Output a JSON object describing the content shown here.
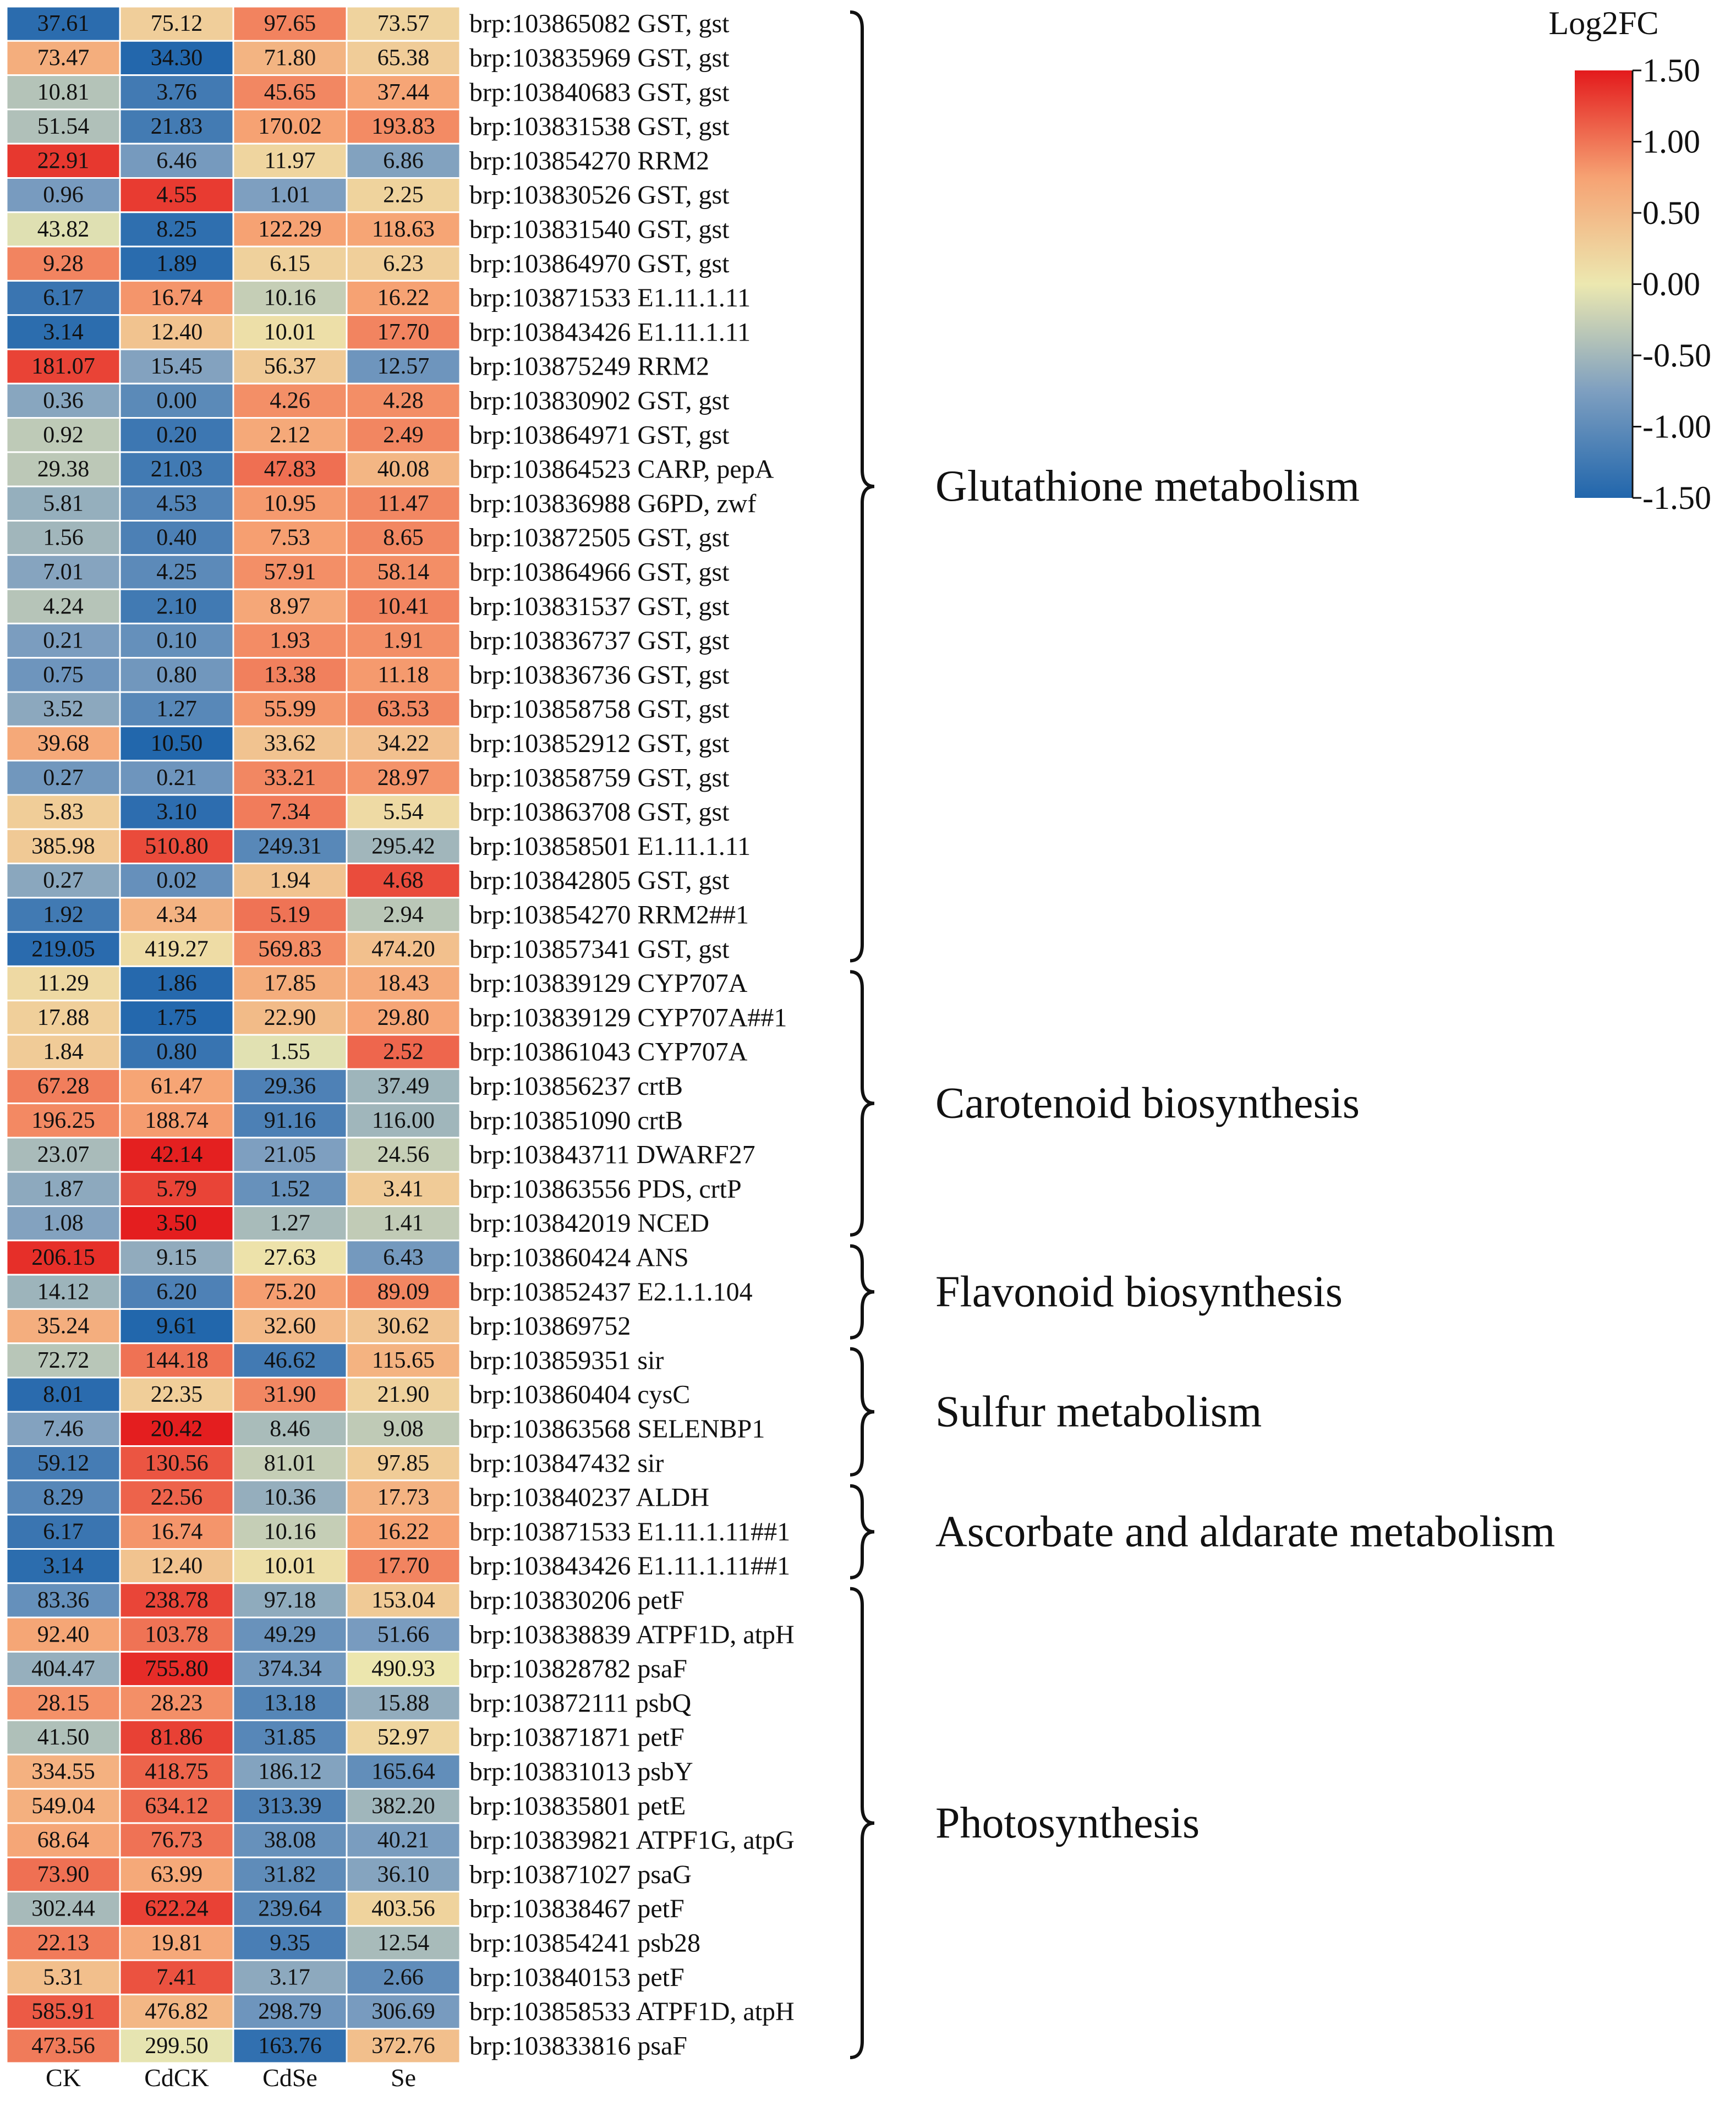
{
  "chart_data": {
    "type": "heatmap",
    "title": "",
    "columns": [
      "CK",
      "CdCK",
      "CdSe",
      "Se"
    ],
    "rows": [
      {
        "label": "brp:103865082 GST, gst",
        "values": [
          37.61,
          75.12,
          97.65,
          73.57
        ]
      },
      {
        "label": "brp:103835969 GST, gst",
        "values": [
          73.47,
          34.3,
          71.8,
          65.38
        ]
      },
      {
        "label": "brp:103840683 GST, gst",
        "values": [
          10.81,
          3.76,
          45.65,
          37.44
        ]
      },
      {
        "label": "brp:103831538 GST, gst",
        "values": [
          51.54,
          21.83,
          170.02,
          193.83
        ]
      },
      {
        "label": "brp:103854270 RRM2",
        "values": [
          22.91,
          6.46,
          11.97,
          6.86
        ]
      },
      {
        "label": "brp:103830526 GST, gst",
        "values": [
          0.96,
          4.55,
          1.01,
          2.25
        ]
      },
      {
        "label": "brp:103831540 GST, gst",
        "values": [
          43.82,
          8.25,
          122.29,
          118.63
        ]
      },
      {
        "label": "brp:103864970 GST, gst",
        "values": [
          9.28,
          1.89,
          6.15,
          6.23
        ]
      },
      {
        "label": "brp:103871533 E1.11.1.11",
        "values": [
          6.17,
          16.74,
          10.16,
          16.22
        ]
      },
      {
        "label": "brp:103843426 E1.11.1.11",
        "values": [
          3.14,
          12.4,
          10.01,
          17.7
        ]
      },
      {
        "label": "brp:103875249 RRM2",
        "values": [
          181.07,
          15.45,
          56.37,
          12.57
        ]
      },
      {
        "label": "brp:103830902 GST, gst",
        "values": [
          0.36,
          0.0,
          4.26,
          4.28
        ]
      },
      {
        "label": "brp:103864971 GST, gst",
        "values": [
          0.92,
          0.2,
          2.12,
          2.49
        ]
      },
      {
        "label": "brp:103864523 CARP, pepA",
        "values": [
          29.38,
          21.03,
          47.83,
          40.08
        ]
      },
      {
        "label": "brp:103836988 G6PD, zwf",
        "values": [
          5.81,
          4.53,
          10.95,
          11.47
        ]
      },
      {
        "label": "brp:103872505 GST, gst",
        "values": [
          1.56,
          0.4,
          7.53,
          8.65
        ]
      },
      {
        "label": "brp:103864966 GST, gst",
        "values": [
          7.01,
          4.25,
          57.91,
          58.14
        ]
      },
      {
        "label": "brp:103831537 GST, gst",
        "values": [
          4.24,
          2.1,
          8.97,
          10.41
        ]
      },
      {
        "label": "brp:103836737 GST, gst",
        "values": [
          0.21,
          0.1,
          1.93,
          1.91
        ]
      },
      {
        "label": "brp:103836736 GST, gst",
        "values": [
          0.75,
          0.8,
          13.38,
          11.18
        ]
      },
      {
        "label": "brp:103858758 GST, gst",
        "values": [
          3.52,
          1.27,
          55.99,
          63.53
        ]
      },
      {
        "label": "brp:103852912 GST, gst",
        "values": [
          39.68,
          10.5,
          33.62,
          34.22
        ]
      },
      {
        "label": "brp:103858759 GST, gst",
        "values": [
          0.27,
          0.21,
          33.21,
          28.97
        ]
      },
      {
        "label": "brp:103863708 GST, gst",
        "values": [
          5.83,
          3.1,
          7.34,
          5.54
        ]
      },
      {
        "label": "brp:103858501 E1.11.1.11",
        "values": [
          385.98,
          510.8,
          249.31,
          295.42
        ]
      },
      {
        "label": "brp:103842805 GST, gst",
        "values": [
          0.27,
          0.02,
          1.94,
          4.68
        ]
      },
      {
        "label": "brp:103854270 RRM2##1",
        "values": [
          1.92,
          4.34,
          5.19,
          2.94
        ]
      },
      {
        "label": "brp:103857341 GST, gst",
        "values": [
          219.05,
          419.27,
          569.83,
          474.2
        ]
      },
      {
        "label": "brp:103839129 CYP707A",
        "values": [
          11.29,
          1.86,
          17.85,
          18.43
        ]
      },
      {
        "label": "brp:103839129 CYP707A##1",
        "values": [
          17.88,
          1.75,
          22.9,
          29.8
        ]
      },
      {
        "label": "brp:103861043 CYP707A",
        "values": [
          1.84,
          0.8,
          1.55,
          2.52
        ]
      },
      {
        "label": "brp:103856237 crtB",
        "values": [
          67.28,
          61.47,
          29.36,
          37.49
        ]
      },
      {
        "label": "brp:103851090 crtB",
        "values": [
          196.25,
          188.74,
          91.16,
          116.0
        ]
      },
      {
        "label": "brp:103843711 DWARF27",
        "values": [
          23.07,
          42.14,
          21.05,
          24.56
        ]
      },
      {
        "label": "brp:103863556 PDS, crtP",
        "values": [
          1.87,
          5.79,
          1.52,
          3.41
        ]
      },
      {
        "label": "brp:103842019 NCED",
        "values": [
          1.08,
          3.5,
          1.27,
          1.41
        ]
      },
      {
        "label": "brp:103860424 ANS",
        "values": [
          206.15,
          9.15,
          27.63,
          6.43
        ]
      },
      {
        "label": "brp:103852437 E2.1.1.104",
        "values": [
          14.12,
          6.2,
          75.2,
          89.09
        ]
      },
      {
        "label": "brp:103869752",
        "values": [
          35.24,
          9.61,
          32.6,
          30.62
        ]
      },
      {
        "label": "brp:103859351 sir",
        "values": [
          72.72,
          144.18,
          46.62,
          115.65
        ]
      },
      {
        "label": "brp:103860404 cysC",
        "values": [
          8.01,
          22.35,
          31.9,
          21.9
        ]
      },
      {
        "label": "brp:103863568 SELENBP1",
        "values": [
          7.46,
          20.42,
          8.46,
          9.08
        ]
      },
      {
        "label": "brp:103847432 sir",
        "values": [
          59.12,
          130.56,
          81.01,
          97.85
        ]
      },
      {
        "label": "brp:103840237 ALDH",
        "values": [
          8.29,
          22.56,
          10.36,
          17.73
        ]
      },
      {
        "label": "brp:103871533 E1.11.1.11##1",
        "values": [
          6.17,
          16.74,
          10.16,
          16.22
        ]
      },
      {
        "label": "brp:103843426 E1.11.1.11##1",
        "values": [
          3.14,
          12.4,
          10.01,
          17.7
        ]
      },
      {
        "label": "brp:103830206 petF",
        "values": [
          83.36,
          238.78,
          97.18,
          153.04
        ]
      },
      {
        "label": "brp:103838839 ATPF1D, atpH",
        "values": [
          92.4,
          103.78,
          49.29,
          51.66
        ]
      },
      {
        "label": "brp:103828782 psaF",
        "values": [
          404.47,
          755.8,
          374.34,
          490.93
        ]
      },
      {
        "label": "brp:103872111 psbQ",
        "values": [
          28.15,
          28.23,
          13.18,
          15.88
        ]
      },
      {
        "label": "brp:103871871 petF",
        "values": [
          41.5,
          81.86,
          31.85,
          52.97
        ]
      },
      {
        "label": "brp:103831013 psbY",
        "values": [
          334.55,
          418.75,
          186.12,
          165.64
        ]
      },
      {
        "label": "brp:103835801 petE",
        "values": [
          549.04,
          634.12,
          313.39,
          382.2
        ]
      },
      {
        "label": "brp:103839821 ATPF1G, atpG",
        "values": [
          68.64,
          76.73,
          38.08,
          40.21
        ]
      },
      {
        "label": "brp:103871027 psaG",
        "values": [
          73.9,
          63.99,
          31.82,
          36.1
        ]
      },
      {
        "label": "brp:103838467 petF",
        "values": [
          302.44,
          622.24,
          239.64,
          403.56
        ]
      },
      {
        "label": "brp:103854241 psb28",
        "values": [
          22.13,
          19.81,
          9.35,
          12.54
        ]
      },
      {
        "label": "brp:103840153 petF",
        "values": [
          5.31,
          7.41,
          3.17,
          2.66
        ]
      },
      {
        "label": "brp:103858533 ATPF1D, atpH",
        "values": [
          585.91,
          476.82,
          298.79,
          306.69
        ]
      },
      {
        "label": "brp:103833816 psaF",
        "values": [
          473.56,
          299.5,
          163.76,
          372.76
        ]
      }
    ],
    "groups": [
      {
        "name": "Glutathione metabolism",
        "start": 0,
        "end": 27
      },
      {
        "name": "Carotenoid biosynthesis",
        "start": 28,
        "end": 35
      },
      {
        "name": "Flavonoid biosynthesis",
        "start": 36,
        "end": 38
      },
      {
        "name": "Sulfur metabolism",
        "start": 39,
        "end": 42
      },
      {
        "name": "Ascorbate and aldarate metabolism",
        "start": 43,
        "end": 45
      },
      {
        "name": "Photosynthesis",
        "start": 46,
        "end": 59
      }
    ],
    "colorbar": {
      "title": "Log2FC",
      "range": [
        -1.5,
        1.5
      ],
      "ticks": [
        "1.50",
        "1.00",
        "0.50",
        "0.00",
        "-0.50",
        "-1.00",
        "-1.50"
      ],
      "colors": [
        "#2166ac",
        "#7e9fc0",
        "#ece8b0",
        "#f6a273",
        "#e31a1c"
      ]
    },
    "value_format": "2 decimals",
    "color_scaling": "row-wise z-score of log2 values"
  }
}
